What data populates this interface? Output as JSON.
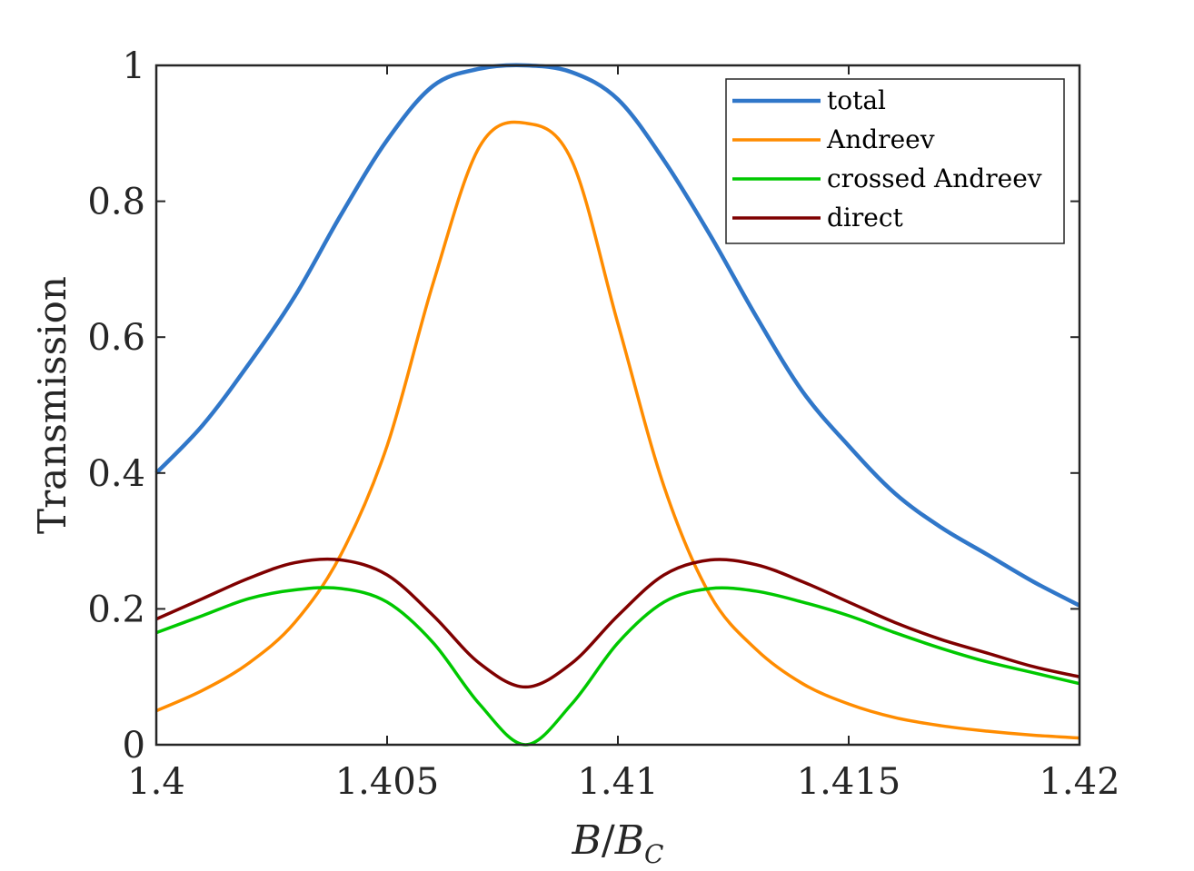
{
  "chart_data": {
    "type": "line",
    "title": "",
    "xlabel": "B/B_C",
    "xlabel_parts": {
      "main": "B",
      "slash": "/",
      "base": "B",
      "sub": "C"
    },
    "ylabel": "Transmission",
    "xlim": [
      1.4,
      1.42
    ],
    "ylim": [
      0,
      1
    ],
    "x_ticks": [
      1.4,
      1.405,
      1.41,
      1.415,
      1.42
    ],
    "x_tick_labels": [
      "1.4",
      "1.405",
      "1.41",
      "1.415",
      "1.42"
    ],
    "y_ticks": [
      0,
      0.2,
      0.4,
      0.6,
      0.8,
      1
    ],
    "y_tick_labels": [
      "0",
      "0.2",
      "0.4",
      "0.6",
      "0.8",
      "1"
    ],
    "grid": false,
    "legend_position": "top-right",
    "x": [
      1.4,
      1.401,
      1.402,
      1.403,
      1.404,
      1.405,
      1.406,
      1.407,
      1.408,
      1.409,
      1.41,
      1.411,
      1.412,
      1.413,
      1.414,
      1.415,
      1.416,
      1.417,
      1.418,
      1.419,
      1.42
    ],
    "series": [
      {
        "name": "total",
        "color": "#3077C9",
        "values": [
          0.4,
          0.47,
          0.56,
          0.66,
          0.78,
          0.89,
          0.97,
          0.995,
          1.0,
          0.99,
          0.95,
          0.86,
          0.75,
          0.63,
          0.52,
          0.44,
          0.37,
          0.32,
          0.28,
          0.24,
          0.205
        ]
      },
      {
        "name": "Andreev",
        "color": "#FF8C00",
        "values": [
          0.05,
          0.08,
          0.12,
          0.18,
          0.28,
          0.44,
          0.68,
          0.88,
          0.915,
          0.86,
          0.62,
          0.38,
          0.22,
          0.14,
          0.09,
          0.06,
          0.04,
          0.028,
          0.02,
          0.014,
          0.01
        ]
      },
      {
        "name": "crossed Andreev",
        "color": "#00C800",
        "values": [
          0.165,
          0.19,
          0.215,
          0.228,
          0.23,
          0.21,
          0.15,
          0.06,
          0.0,
          0.06,
          0.15,
          0.21,
          0.23,
          0.226,
          0.21,
          0.19,
          0.165,
          0.142,
          0.122,
          0.106,
          0.09
        ]
      },
      {
        "name": "direct",
        "color": "#7F0000",
        "values": [
          0.185,
          0.215,
          0.245,
          0.268,
          0.272,
          0.25,
          0.19,
          0.12,
          0.085,
          0.12,
          0.19,
          0.25,
          0.272,
          0.265,
          0.24,
          0.21,
          0.18,
          0.155,
          0.135,
          0.115,
          0.1
        ]
      }
    ]
  }
}
